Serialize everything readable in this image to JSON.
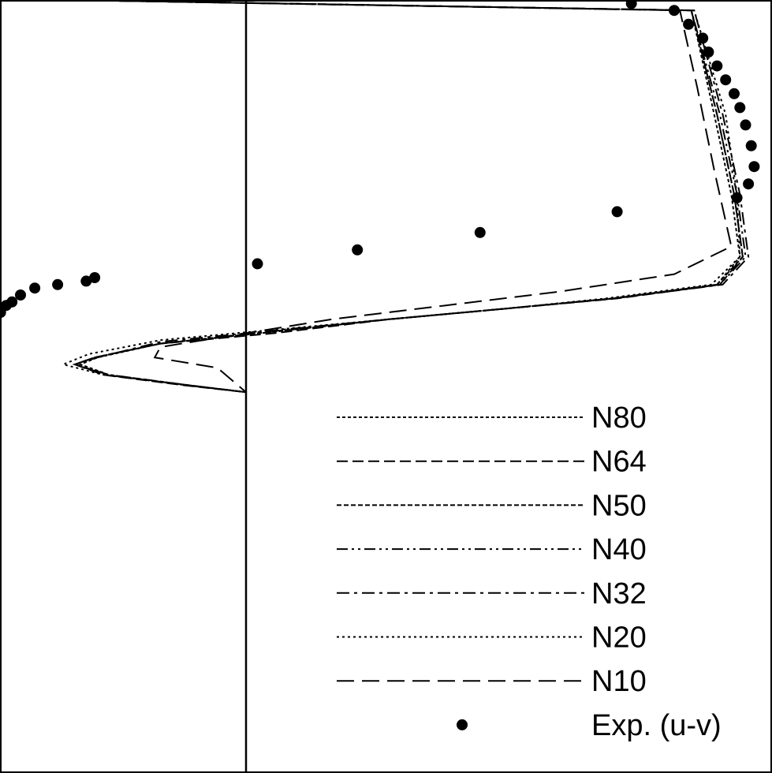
{
  "chart_data": {
    "type": "line",
    "title": "",
    "xlabel": "",
    "ylabel": "",
    "axis": {
      "x_ref": 0
    },
    "legend_position": "bottom-right",
    "series": [
      {
        "name": "N80",
        "style": "fine-dash",
        "points": [
          [
            -0.62,
            0.0
          ],
          [
            1.56,
            0.03
          ],
          [
            1.64,
            0.33
          ],
          [
            1.7,
            0.56
          ],
          [
            1.73,
            0.74
          ],
          [
            1.65,
            0.82
          ],
          [
            1.28,
            0.86
          ],
          [
            0.9,
            0.89
          ],
          [
            0.5,
            0.92
          ],
          [
            0.1,
            0.956
          ],
          [
            -0.3,
            0.99
          ],
          [
            -0.52,
            1.03
          ],
          [
            -0.58,
            1.05
          ],
          [
            -0.48,
            1.08
          ],
          [
            -0.2,
            1.11
          ],
          [
            0.0,
            1.13
          ]
        ]
      },
      {
        "name": "N64",
        "style": "dash",
        "points": [
          [
            -0.62,
            0.0
          ],
          [
            1.56,
            0.03
          ],
          [
            1.65,
            0.33
          ],
          [
            1.71,
            0.56
          ],
          [
            1.74,
            0.74
          ],
          [
            1.66,
            0.82
          ],
          [
            1.3,
            0.86
          ],
          [
            0.9,
            0.89
          ],
          [
            0.5,
            0.92
          ],
          [
            0.1,
            0.96
          ],
          [
            -0.3,
            0.99
          ],
          [
            -0.53,
            1.03
          ],
          [
            -0.6,
            1.05
          ],
          [
            -0.5,
            1.08
          ],
          [
            -0.22,
            1.11
          ],
          [
            0.0,
            1.13
          ]
        ]
      },
      {
        "name": "N50",
        "style": "dense-dash",
        "points": [
          [
            -0.62,
            0.0
          ],
          [
            1.56,
            0.03
          ],
          [
            1.65,
            0.33
          ],
          [
            1.71,
            0.56
          ],
          [
            1.74,
            0.74
          ],
          [
            1.65,
            0.82
          ],
          [
            1.29,
            0.86
          ],
          [
            0.9,
            0.89
          ],
          [
            0.5,
            0.92
          ],
          [
            0.1,
            0.955
          ],
          [
            -0.3,
            0.99
          ],
          [
            -0.53,
            1.03
          ],
          [
            -0.6,
            1.05
          ],
          [
            -0.49,
            1.08
          ],
          [
            -0.21,
            1.11
          ],
          [
            0.0,
            1.13
          ]
        ]
      },
      {
        "name": "N40",
        "style": "dash-dot-dot",
        "points": [
          [
            -0.62,
            0.0
          ],
          [
            1.56,
            0.03
          ],
          [
            1.66,
            0.33
          ],
          [
            1.72,
            0.56
          ],
          [
            1.75,
            0.74
          ],
          [
            1.66,
            0.82
          ],
          [
            1.29,
            0.86
          ],
          [
            0.9,
            0.89
          ],
          [
            0.5,
            0.92
          ],
          [
            0.1,
            0.954
          ],
          [
            -0.3,
            0.99
          ],
          [
            -0.53,
            1.03
          ],
          [
            -0.6,
            1.05
          ],
          [
            -0.49,
            1.08
          ],
          [
            -0.21,
            1.11
          ],
          [
            0.0,
            1.13
          ]
        ]
      },
      {
        "name": "N32",
        "style": "dash-dot",
        "points": [
          [
            -0.62,
            0.0
          ],
          [
            1.57,
            0.03
          ],
          [
            1.67,
            0.33
          ],
          [
            1.73,
            0.56
          ],
          [
            1.76,
            0.74
          ],
          [
            1.67,
            0.82
          ],
          [
            1.29,
            0.86
          ],
          [
            0.9,
            0.89
          ],
          [
            0.5,
            0.92
          ],
          [
            0.1,
            0.952
          ],
          [
            -0.3,
            0.985
          ],
          [
            -0.52,
            1.03
          ],
          [
            -0.6,
            1.05
          ],
          [
            -0.48,
            1.08
          ],
          [
            -0.2,
            1.11
          ],
          [
            0.0,
            1.13
          ]
        ]
      },
      {
        "name": "N20",
        "style": "dot",
        "points": [
          [
            -0.62,
            0.0
          ],
          [
            1.57,
            0.03
          ],
          [
            1.68,
            0.33
          ],
          [
            1.72,
            0.56
          ],
          [
            1.73,
            0.74
          ],
          [
            1.63,
            0.82
          ],
          [
            1.26,
            0.86
          ],
          [
            0.9,
            0.89
          ],
          [
            0.5,
            0.92
          ],
          [
            0.1,
            0.95
          ],
          [
            -0.3,
            0.98
          ],
          [
            -0.55,
            1.02
          ],
          [
            -0.64,
            1.05
          ],
          [
            -0.5,
            1.08
          ],
          [
            -0.2,
            1.11
          ],
          [
            0.0,
            1.13
          ]
        ]
      },
      {
        "name": "N10",
        "style": "long-dash",
        "points": [
          [
            -0.62,
            0.0
          ],
          [
            1.52,
            0.03
          ],
          [
            1.58,
            0.25
          ],
          [
            1.64,
            0.49
          ],
          [
            1.7,
            0.71
          ],
          [
            1.5,
            0.79
          ],
          [
            1.1,
            0.84
          ],
          [
            0.7,
            0.88
          ],
          [
            0.3,
            0.92
          ],
          [
            0.0,
            0.96
          ],
          [
            -0.3,
            1.0
          ],
          [
            -0.32,
            1.03
          ],
          [
            -0.1,
            1.06
          ],
          [
            0.0,
            1.13
          ]
        ]
      },
      {
        "name": "Exp. (u-v)",
        "style": "marker",
        "points": [
          [
            1.35,
            0.01
          ],
          [
            1.5,
            0.03
          ],
          [
            1.55,
            0.07
          ],
          [
            1.6,
            0.11
          ],
          [
            1.62,
            0.15
          ],
          [
            1.65,
            0.19
          ],
          [
            1.68,
            0.23
          ],
          [
            1.71,
            0.27
          ],
          [
            1.73,
            0.31
          ],
          [
            1.75,
            0.36
          ],
          [
            1.77,
            0.42
          ],
          [
            1.78,
            0.48
          ],
          [
            1.76,
            0.53
          ],
          [
            1.72,
            0.57
          ],
          [
            1.3,
            0.61
          ],
          [
            0.82,
            0.67
          ],
          [
            0.39,
            0.72
          ],
          [
            0.04,
            0.76
          ],
          [
            -0.53,
            0.8
          ],
          [
            -0.56,
            0.81
          ],
          [
            -0.66,
            0.82
          ],
          [
            -0.74,
            0.83
          ],
          [
            -0.79,
            0.85
          ],
          [
            -0.82,
            0.87
          ],
          [
            -0.84,
            0.88
          ],
          [
            -0.86,
            0.9
          ]
        ]
      }
    ]
  }
}
